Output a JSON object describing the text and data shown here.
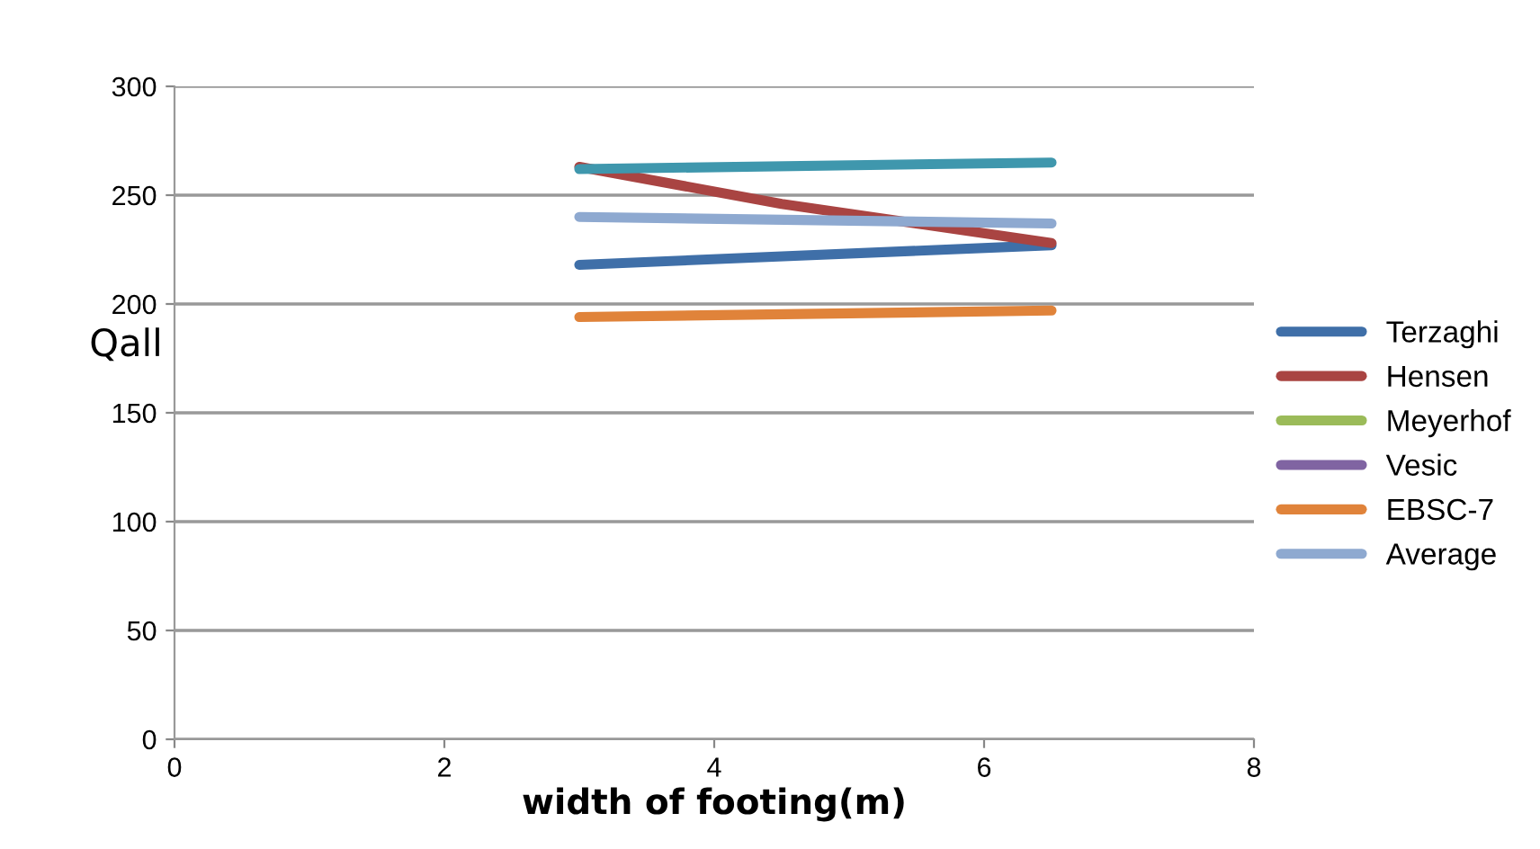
{
  "chart_data": {
    "type": "line",
    "xlabel": "width of footing(m)",
    "ylabel": "Qall",
    "x": [
      3,
      6.5
    ],
    "xlim": [
      0,
      8
    ],
    "xticks": [
      0,
      2,
      4,
      6,
      8
    ],
    "ylim": [
      0,
      300
    ],
    "yticks": [
      0,
      50,
      100,
      150,
      200,
      250,
      300
    ],
    "grid": "y",
    "legend": "right",
    "marker": "none",
    "line_style": "solid",
    "series": [
      {
        "name": "Terzaghi",
        "color": "#3f6fa8",
        "values": [
          218,
          227
        ]
      },
      {
        "name": "Hensen",
        "color": "#a94442",
        "x": [
          3,
          4.5,
          6.5
        ],
        "values": [
          263,
          246,
          228
        ]
      },
      {
        "name": "Meyerhof",
        "color": "#9bbb59",
        "values": [
          null,
          null
        ]
      },
      {
        "name": "Vesic",
        "color": "#8064a2",
        "values": [
          null,
          null
        ]
      },
      {
        "name": "EBSC-7",
        "color": "#e0833a",
        "values": [
          194,
          197
        ]
      },
      {
        "name": "Average",
        "color": "#8ea9d0",
        "values": [
          240,
          237
        ]
      },
      {
        "color": "#3f97ad",
        "values": [
          262,
          265
        ]
      }
    ]
  }
}
